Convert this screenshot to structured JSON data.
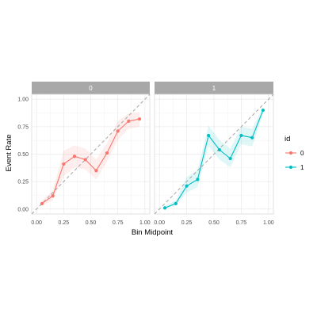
{
  "chart_data": {
    "type": "line",
    "facet_variable": "id",
    "panels": [
      "0",
      "1"
    ],
    "x_label": "Bin Midpoint",
    "y_label": "Event Rate",
    "xlim": [
      0,
      1
    ],
    "ylim": [
      0,
      1
    ],
    "x_ticks": [
      "0.00",
      "0.25",
      "0.50",
      "0.75",
      "1.00"
    ],
    "y_ticks": [
      "0.00",
      "0.25",
      "0.50",
      "0.75",
      "1.00"
    ],
    "reference_line": "y = x (dashed)",
    "grid": true,
    "legend": {
      "title": "id",
      "position": "right"
    },
    "series": [
      {
        "name": "0",
        "panel": "0",
        "color": "#F8766D",
        "x": [
          0.05,
          0.15,
          0.25,
          0.35,
          0.45,
          0.55,
          0.65,
          0.75,
          0.85,
          0.95
        ],
        "y": [
          0.05,
          0.12,
          0.41,
          0.48,
          0.45,
          0.35,
          0.51,
          0.71,
          0.8,
          0.82
        ],
        "ci_low": [
          0.03,
          0.08,
          0.3,
          0.38,
          0.36,
          0.27,
          0.43,
          0.63,
          0.73,
          0.75
        ],
        "ci_high": [
          0.08,
          0.17,
          0.53,
          0.58,
          0.55,
          0.45,
          0.6,
          0.8,
          0.87,
          0.88
        ]
      },
      {
        "name": "1",
        "panel": "1",
        "color": "#00BFC4",
        "x": [
          0.05,
          0.15,
          0.25,
          0.35,
          0.45,
          0.55,
          0.65,
          0.75,
          0.85,
          0.95
        ],
        "y": [
          0.01,
          0.05,
          0.21,
          0.27,
          0.67,
          0.54,
          0.46,
          0.67,
          0.65,
          0.9
        ],
        "ci_low": [
          0.0,
          0.03,
          0.15,
          0.2,
          0.57,
          0.45,
          0.38,
          0.59,
          0.57,
          0.86
        ],
        "ci_high": [
          0.03,
          0.08,
          0.29,
          0.36,
          0.76,
          0.63,
          0.55,
          0.75,
          0.73,
          0.93
        ]
      }
    ]
  }
}
